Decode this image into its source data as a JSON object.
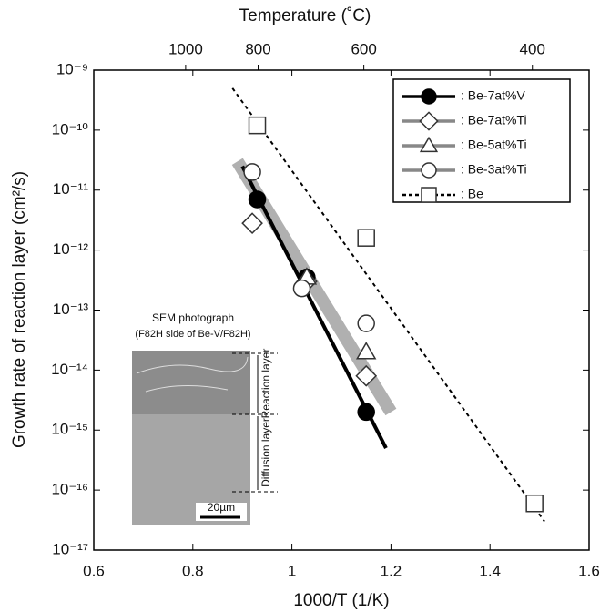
{
  "chart_data": {
    "type": "scatter",
    "title": "Temperature (˚C)",
    "x_label": "1000/T (1/K)",
    "y_label": "Growth rate of reaction layer (cm²/s)",
    "log_y": true,
    "xlim": [
      0.6,
      1.6
    ],
    "xticks": [
      0.6,
      0.8,
      1.0,
      1.2,
      1.4,
      1.6
    ],
    "ylim": [
      1e-17,
      1e-09
    ],
    "yticks": [
      {
        "value": 1e-17,
        "label": "10⁻¹⁷"
      },
      {
        "value": 1e-16,
        "label": "10⁻¹⁶"
      },
      {
        "value": 1e-15,
        "label": "10⁻¹⁵"
      },
      {
        "value": 1e-14,
        "label": "10⁻¹⁴"
      },
      {
        "value": 1e-13,
        "label": "10⁻¹³"
      },
      {
        "value": 1e-12,
        "label": "10⁻¹²"
      },
      {
        "value": 1e-11,
        "label": "10⁻¹¹"
      },
      {
        "value": 1e-10,
        "label": "10⁻¹⁰"
      },
      {
        "value": 1e-09,
        "label": "10⁻⁹"
      }
    ],
    "x2ticks": [
      1000,
      800,
      600,
      400
    ],
    "legend": "top-right",
    "series": [
      {
        "name": ": Be-7at%V",
        "marker": "filled-circle",
        "color": "#000000",
        "x": [
          0.93,
          1.03,
          1.15
        ],
        "values": [
          7e-12,
          3.5e-13,
          2e-15
        ],
        "fit": {
          "x": [
            0.9,
            1.19
          ],
          "y": [
            2.5e-11,
            5e-16
          ]
        }
      },
      {
        "name": ": Be-7at%Ti",
        "marker": "diamond",
        "color": "#888888",
        "x": [
          0.92,
          1.03,
          1.15
        ],
        "values": [
          2.8e-12,
          3e-13,
          8e-15
        ]
      },
      {
        "name": ": Be-5at%Ti",
        "marker": "triangle",
        "color": "#888888",
        "x": [
          1.03,
          1.15
        ],
        "values": [
          3.5e-13,
          2e-14
        ]
      },
      {
        "name": ": Be-3at%Ti",
        "marker": "circle",
        "color": "#888888",
        "x": [
          0.92,
          1.02,
          1.15
        ],
        "values": [
          2e-11,
          2.3e-13,
          6e-14
        ]
      },
      {
        "name": ": Be",
        "marker": "square",
        "color": "#000000",
        "dashed": true,
        "x": [
          0.93,
          1.15,
          1.49
        ],
        "values": [
          1.2e-10,
          1.6e-12,
          6e-17
        ],
        "fit": {
          "x": [
            0.88,
            1.51
          ],
          "y": [
            5e-10,
            3e-17
          ]
        }
      }
    ],
    "band": {
      "color": "#b0b0b0",
      "x": [
        0.89,
        1.2
      ],
      "y": [
        3e-11,
        2e-15
      ]
    },
    "inset": {
      "title": "SEM photograph",
      "subtitle": "(F82H side of Be-V/F82H)",
      "reaction": "Reaction layer",
      "diffusion": "Diffusion layer",
      "scale": "20µm"
    }
  }
}
